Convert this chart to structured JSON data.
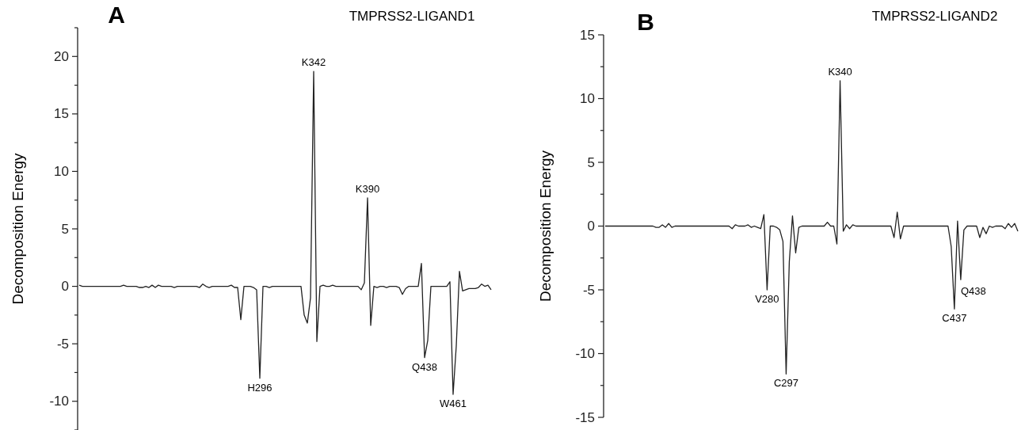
{
  "chart_data": [
    {
      "type": "line",
      "title": "TMPRSS2-LIGAND1",
      "ylabel": "Decomposition Energy",
      "annotations": [
        "A",
        {
          "text": "K342",
          "y": 18.7
        },
        {
          "text": "K390",
          "y": 7.7
        },
        {
          "text": "H296",
          "y": -8
        },
        {
          "text": "Q438",
          "y": -6.2
        },
        {
          "text": "W461",
          "y": -9.4
        }
      ],
      "categories": [
        null,
        null,
        null,
        null,
        null,
        null,
        null,
        null,
        null,
        null,
        null,
        null,
        null,
        null,
        null,
        null,
        null,
        null,
        null,
        null,
        null,
        null,
        null,
        null,
        null,
        null,
        null,
        null,
        null,
        null,
        null,
        null,
        null,
        null,
        null,
        null,
        null,
        null,
        null,
        null,
        null,
        null,
        null,
        null,
        null,
        null,
        null,
        null,
        null,
        null,
        null,
        null,
        null,
        null,
        null,
        null,
        null,
        null,
        null,
        null,
        null,
        null,
        null,
        null,
        null,
        null,
        null,
        null,
        null,
        null,
        null,
        null,
        null,
        null,
        null,
        null,
        null,
        null,
        null,
        null,
        null,
        null,
        null,
        null,
        null,
        null,
        null,
        null,
        null,
        null,
        null,
        null,
        null,
        null,
        null,
        null,
        null,
        null,
        null,
        null,
        null,
        null,
        null,
        null,
        null,
        null,
        null,
        null,
        null,
        null,
        null,
        null,
        null,
        null,
        null,
        null,
        null,
        null,
        null,
        null,
        null,
        null,
        null,
        null,
        null,
        null,
        null,
        null,
        null,
        null,
        null
      ],
      "series": [
        {
          "color": "#222222",
          "values": [
            0.1,
            0,
            0,
            0,
            0,
            0,
            0,
            0,
            0,
            0,
            0,
            0,
            0,
            0,
            0.1,
            0,
            0,
            0,
            0,
            -0.1,
            -0.1,
            0,
            -0.1,
            0.1,
            -0.1,
            0.1,
            0,
            0,
            0,
            0,
            -0.1,
            0,
            0,
            0,
            0,
            0,
            0,
            0,
            -0.1,
            0.2,
            0,
            -0.1,
            0,
            0,
            0,
            0,
            0,
            0,
            0.1,
            -0.1,
            -0.1,
            -2.9,
            0,
            0,
            0,
            -0.1,
            -0.3,
            -8,
            0,
            0,
            -0.1,
            0,
            0,
            0,
            0,
            0,
            0,
            0,
            0,
            0,
            0,
            -2.5,
            -3.2,
            -1,
            18.7,
            -4.8,
            0,
            0.1,
            0,
            0,
            0.1,
            0,
            0,
            0,
            0,
            0,
            0,
            0,
            0,
            -0.3,
            0.3,
            7.7,
            -3.4,
            0,
            -0.1,
            0,
            0,
            -0.1,
            0,
            0,
            0,
            -0.1,
            -0.7,
            -0.2,
            0,
            0,
            0,
            0,
            2,
            -6.2,
            -4.7,
            0,
            0,
            0,
            0,
            0,
            0,
            0.4,
            -9.4,
            -5.2,
            1.3,
            -0.4,
            -0.3,
            -0.2,
            -0.2,
            -0.2,
            -0.1,
            0.2,
            0,
            0.1,
            -0.3
          ]
        }
      ],
      "ylim": [
        -12.5,
        22.5
      ],
      "yticks": [
        {
          "value": -12.5,
          "label": null
        },
        -10,
        {
          "value": -7.5,
          "label": null
        },
        -5,
        {
          "value": -2.5,
          "label": null
        },
        0,
        {
          "value": 2.5,
          "label": null
        },
        5,
        {
          "value": 7.5,
          "label": null
        },
        10,
        {
          "value": 12.5,
          "label": null
        },
        15,
        {
          "value": 17.5,
          "label": null
        },
        20,
        {
          "value": 22.5,
          "label": null
        }
      ],
      "tick_labels": "y"
    },
    {
      "type": "line",
      "title": "TMPRSS2-LIGAND2",
      "ylabel": "Decomposition Energy",
      "annotations": [
        "B",
        {
          "text": "K340",
          "y": 11.4
        },
        {
          "text": "V280",
          "y": -5
        },
        {
          "text": "C297",
          "y": -11.6
        },
        {
          "text": "C437",
          "y": -6.5
        },
        "Q438"
      ],
      "categories": [
        null,
        null,
        null,
        null,
        null,
        null,
        null,
        null,
        null,
        null,
        null,
        null,
        null,
        null,
        null,
        null,
        null,
        null,
        null,
        null,
        null,
        null,
        null,
        null,
        null,
        null,
        null,
        null,
        null,
        null,
        null,
        null,
        null,
        null,
        null,
        null,
        null,
        null,
        null,
        null,
        null,
        null,
        null,
        null,
        null,
        null,
        null,
        null,
        null,
        null,
        null,
        null,
        null,
        null,
        null,
        null,
        null,
        null,
        null,
        null,
        null,
        null,
        null,
        null,
        null,
        null,
        null,
        null,
        null,
        null,
        null,
        null,
        null,
        null,
        null,
        null,
        null,
        null,
        null,
        null,
        null,
        null,
        null,
        null,
        null,
        null,
        null,
        null,
        null,
        null,
        null,
        null,
        null,
        null,
        null,
        null,
        null,
        null,
        null,
        null,
        null,
        null,
        null,
        null,
        null,
        null,
        null,
        null,
        null,
        null,
        null,
        null,
        null,
        null,
        null,
        null,
        null,
        null,
        null,
        null,
        null,
        null,
        null,
        null,
        null,
        null,
        null,
        null,
        null,
        null,
        null
      ],
      "series": [
        {
          "color": "#222222",
          "values": [
            0,
            0,
            0,
            0,
            0,
            0,
            0,
            0,
            0,
            0,
            0,
            0,
            0,
            0,
            0,
            0,
            -0.1,
            -0.1,
            0.1,
            -0.1,
            0.2,
            -0.1,
            0,
            0,
            0,
            0,
            0,
            0,
            0,
            0,
            0,
            0,
            0,
            0,
            0,
            0,
            0,
            0,
            0,
            0,
            -0.2,
            0.1,
            0,
            0,
            0,
            0.1,
            -0.1,
            0,
            -0.1,
            -0.2,
            0.9,
            -5,
            0,
            0,
            -0.1,
            -0.3,
            -1.2,
            -11.6,
            -2.8,
            0.8,
            -2.1,
            -0.1,
            0,
            0,
            0,
            0,
            0,
            0,
            0,
            0,
            0.3,
            0,
            0,
            -1.4,
            11.4,
            -0.4,
            0.1,
            -0.2,
            0.1,
            0,
            0,
            0,
            0,
            0,
            0,
            0,
            0,
            0,
            0,
            0,
            0,
            -0.9,
            1.1,
            -1,
            0,
            0,
            0,
            0,
            0,
            0,
            0,
            0,
            0,
            0,
            0,
            0,
            0,
            0,
            0,
            -1.6,
            -6.5,
            0.4,
            -4.2,
            -0.3,
            0,
            0,
            0,
            0,
            -0.9,
            -0.1,
            -0.6,
            0,
            -0.1,
            0,
            0,
            0,
            -0.2,
            0.2,
            -0.1,
            0.2,
            -0.4
          ]
        }
      ],
      "ylim": [
        -15,
        15
      ],
      "yticks": [
        -15,
        {
          "value": -12.5,
          "label": null
        },
        -10,
        {
          "value": -7.5,
          "label": null
        },
        -5,
        {
          "value": -2.5,
          "label": null
        },
        0,
        {
          "value": 2.5,
          "label": null
        },
        5,
        {
          "value": 7.5,
          "label": null
        },
        10,
        {
          "value": 12.5,
          "label": null
        },
        15
      ],
      "tick_labels": "y"
    }
  ]
}
